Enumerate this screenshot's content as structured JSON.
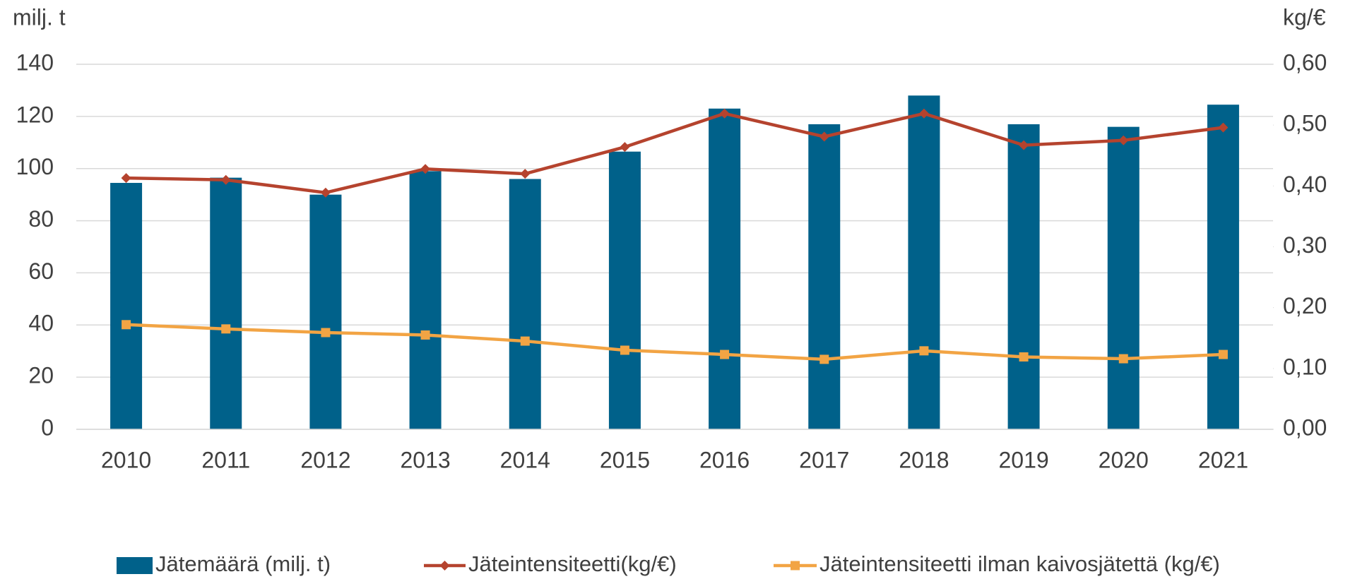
{
  "chart_data": {
    "type": "bar_line",
    "y_label": "milj. t",
    "y2_label": "kg/€",
    "categories": [
      "2010",
      "2011",
      "2012",
      "2013",
      "2014",
      "2015",
      "2016",
      "2017",
      "2018",
      "2019",
      "2020",
      "2021"
    ],
    "series": [
      {
        "name": "Jätemäärä (milj. t)",
        "type": "bar",
        "color": "#00618a",
        "axis": "y",
        "values": [
          94.5,
          96.5,
          90,
          99,
          96,
          106.5,
          123,
          117,
          128,
          117,
          116,
          124.5
        ]
      },
      {
        "name": "Jäteintensiteetti(kg/€)",
        "type": "line",
        "marker": "diamond",
        "color": "#b5432e",
        "axis": "y2",
        "values": [
          0.413,
          0.41,
          0.389,
          0.428,
          0.42,
          0.464,
          0.519,
          0.481,
          0.519,
          0.467,
          0.475,
          0.496
        ]
      },
      {
        "name": "Jäteintensiteetti ilman kaivosjätettä (kg/€)",
        "type": "line",
        "marker": "square",
        "color": "#f2a444",
        "axis": "y2",
        "values": [
          0.172,
          0.165,
          0.159,
          0.155,
          0.145,
          0.13,
          0.123,
          0.115,
          0.129,
          0.119,
          0.116,
          0.123
        ]
      }
    ],
    "ylim": [
      0,
      140
    ],
    "yticks": [
      0,
      20,
      40,
      60,
      80,
      100,
      120,
      140
    ],
    "y2lim": [
      0,
      0.6
    ],
    "y2ticks": [
      {
        "value": 0,
        "label": "0,00"
      },
      {
        "value": 0.1,
        "label": "0,10"
      },
      {
        "value": 0.2,
        "label": "0,20"
      },
      {
        "value": 0.3,
        "label": "0,30"
      },
      {
        "value": 0.4,
        "label": "0,40"
      },
      {
        "value": 0.5,
        "label": "0,50"
      },
      {
        "value": 0.6,
        "label": "0,60"
      }
    ],
    "grid": true,
    "legend": "bottom"
  }
}
